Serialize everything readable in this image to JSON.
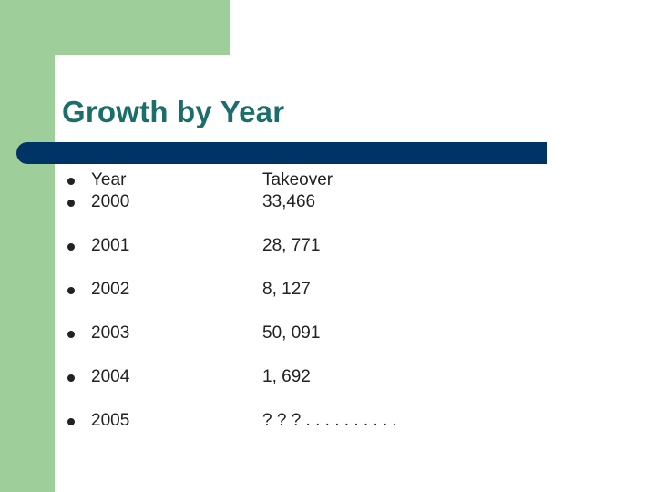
{
  "colors": {
    "accent_green": "#9ecf9a",
    "title_teal": "#1c6e6a",
    "rule_navy": "#003366",
    "text": "#222222"
  },
  "slide": {
    "title": "Growth by Year"
  },
  "table": {
    "rows": [
      {
        "col1": "Year",
        "col2": "Takeover"
      },
      {
        "col1": "2000",
        "col2": "33,466"
      },
      {
        "col1": "2001",
        "col2": "28, 771"
      },
      {
        "col1": "2002",
        "col2": "8, 127"
      },
      {
        "col1": "2003",
        "col2": "50, 091"
      },
      {
        "col1": "2004",
        "col2": "1, 692"
      },
      {
        "col1": "2005",
        "col2": "? ? ? . . . . . . . . . ."
      }
    ]
  }
}
